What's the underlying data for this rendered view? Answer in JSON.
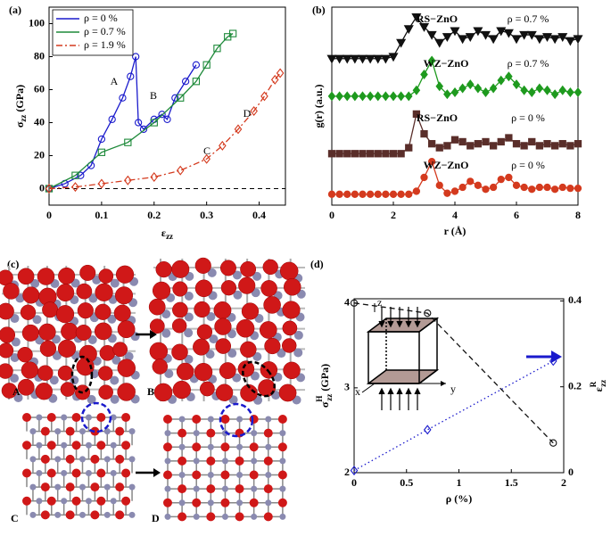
{
  "chart_data": [
    {
      "type": "line",
      "panel_label": "(a)",
      "xlabel": "ε",
      "xlabel_sub": "zz",
      "ylabel": "σ",
      "ylabel_sub": "zz",
      "ylabel_unit": " (GPa)",
      "xlim": [
        0,
        0.45
      ],
      "ylim": [
        -10,
        110
      ],
      "xticks": [
        0,
        0.1,
        0.2,
        0.3,
        0.4
      ],
      "yticks": [
        0,
        20,
        40,
        60,
        80,
        100
      ],
      "reference_line": 0,
      "legend": "upper left",
      "annotations": [
        "A",
        "B",
        "C",
        "D"
      ],
      "series": [
        {
          "name": "ρ = 0 %",
          "color": "#1a1acc",
          "marker": "circle",
          "linestyle": "solid",
          "x": [
            0,
            0.03,
            0.06,
            0.08,
            0.1,
            0.12,
            0.14,
            0.155,
            0.165,
            0.17,
            0.18,
            0.2,
            0.215,
            0.225,
            0.24,
            0.26,
            0.28
          ],
          "values": [
            0,
            3,
            8,
            14,
            30,
            42,
            55,
            68,
            80,
            40,
            36,
            42,
            45,
            42,
            55,
            65,
            75
          ]
        },
        {
          "name": "ρ = 0.7 %",
          "color": "#1e8a3a",
          "marker": "square",
          "linestyle": "solid",
          "x": [
            0,
            0.05,
            0.1,
            0.15,
            0.2,
            0.25,
            0.28,
            0.3,
            0.32,
            0.34,
            0.35
          ],
          "values": [
            0,
            8,
            22,
            28,
            40,
            55,
            65,
            75,
            85,
            92,
            94
          ]
        },
        {
          "name": "ρ = 1.9 %",
          "color": "#d43a1e",
          "marker": "diamond",
          "linestyle": "dashdot",
          "x": [
            0,
            0.05,
            0.1,
            0.15,
            0.2,
            0.25,
            0.3,
            0.33,
            0.36,
            0.39,
            0.41,
            0.43,
            0.44
          ],
          "values": [
            0,
            1,
            3,
            5,
            7,
            11,
            18,
            26,
            36,
            47,
            56,
            66,
            70
          ]
        }
      ]
    },
    {
      "type": "line",
      "panel_label": "(b)",
      "xlabel": "r (Å)",
      "ylabel": "g(r) (a.u.)",
      "xlim": [
        0,
        8
      ],
      "ylim": [
        0,
        10
      ],
      "xticks": [
        0,
        2,
        4,
        6,
        8
      ],
      "filled_markers": true,
      "annotations": [
        "RS−ZnO",
        "ρ = 0.7 %",
        "WZ−ZnO",
        "ρ = 0.7 %",
        "RS−ZnO",
        "ρ = 0 %",
        "WZ−ZnO",
        "ρ = 0 %"
      ],
      "x": [
        0,
        0.25,
        0.5,
        0.75,
        1,
        1.25,
        1.5,
        1.75,
        2,
        2.25,
        2.5,
        2.75,
        3,
        3.25,
        3.5,
        3.75,
        4,
        4.25,
        4.5,
        4.75,
        5,
        5.25,
        5.5,
        5.75,
        6,
        6.25,
        6.5,
        6.75,
        7,
        7.25,
        7.5,
        7.75,
        8
      ],
      "series": [
        {
          "color": "#111111",
          "marker": "triangle-down",
          "values": [
            7.4,
            7.4,
            7.4,
            7.4,
            7.4,
            7.4,
            7.4,
            7.4,
            7.5,
            8.2,
            8.9,
            9.5,
            9.0,
            8.6,
            8.2,
            8.5,
            8.8,
            8.4,
            8.5,
            8.8,
            8.6,
            8.4,
            8.8,
            8.7,
            8.4,
            8.6,
            8.6,
            8.4,
            8.5,
            8.4,
            8.5,
            8.3,
            8.4
          ]
        },
        {
          "color": "#1e9a1e",
          "marker": "diamond",
          "values": [
            5.5,
            5.5,
            5.5,
            5.5,
            5.5,
            5.5,
            5.5,
            5.5,
            5.5,
            5.5,
            5.5,
            5.8,
            6.6,
            7.3,
            6.0,
            5.6,
            5.7,
            5.9,
            6.1,
            5.9,
            5.7,
            5.9,
            6.3,
            6.5,
            6.1,
            5.8,
            5.7,
            5.9,
            5.8,
            5.6,
            5.8,
            5.7,
            5.7
          ]
        },
        {
          "color": "#5a2e2a",
          "marker": "square",
          "values": [
            2.6,
            2.6,
            2.6,
            2.6,
            2.6,
            2.6,
            2.6,
            2.6,
            2.6,
            2.6,
            2.9,
            4.6,
            3.6,
            3.1,
            2.9,
            3.0,
            3.3,
            3.2,
            3.0,
            3.1,
            3.2,
            3.0,
            3.2,
            3.4,
            3.1,
            3.0,
            3.2,
            3.0,
            3.1,
            3.0,
            3.1,
            3.0,
            3.1
          ]
        },
        {
          "color": "#d43a1e",
          "marker": "circle",
          "values": [
            0.55,
            0.55,
            0.55,
            0.55,
            0.55,
            0.55,
            0.55,
            0.55,
            0.55,
            0.55,
            0.55,
            0.7,
            1.4,
            2.2,
            1.0,
            0.6,
            0.7,
            0.9,
            1.2,
            1.0,
            0.8,
            0.9,
            1.3,
            1.4,
            1.0,
            0.9,
            0.8,
            0.9,
            0.9,
            0.8,
            0.9,
            0.85,
            0.85
          ]
        }
      ]
    },
    {
      "type": "line",
      "panel_label": "(d)",
      "xlabel": "ρ (%)",
      "ylabel": "σ",
      "ylabel_sup": "H",
      "ylabel_sub": "zz",
      "ylabel_unit": " (GPa)",
      "y2label": "ε",
      "y2label_sup": "R",
      "y2label_sub": "zz",
      "xlim": [
        0,
        2
      ],
      "ylim": [
        2,
        4.05
      ],
      "y2lim": [
        0,
        0.405
      ],
      "xticks": [
        0,
        0.5,
        1,
        1.5,
        2
      ],
      "yticks": [
        2,
        3,
        4
      ],
      "y2ticks": [
        0,
        0.2,
        0.4
      ],
      "inset_axes": [
        "z",
        "y",
        "x"
      ],
      "x": [
        0,
        0.7,
        1.9
      ],
      "series": [
        {
          "color": "#111111",
          "marker": "circle",
          "linestyle": "dashed",
          "values": [
            4.0,
            3.88,
            2.35
          ]
        },
        {
          "color": "#1a1acc",
          "marker": "diamond",
          "linestyle": "dotted",
          "axis": "y2",
          "values": [
            0.005,
            0.1,
            0.26
          ]
        }
      ]
    }
  ],
  "panel_c": {
    "panel_label": "(c)",
    "labels": [
      "A",
      "B",
      "C",
      "D"
    ]
  }
}
